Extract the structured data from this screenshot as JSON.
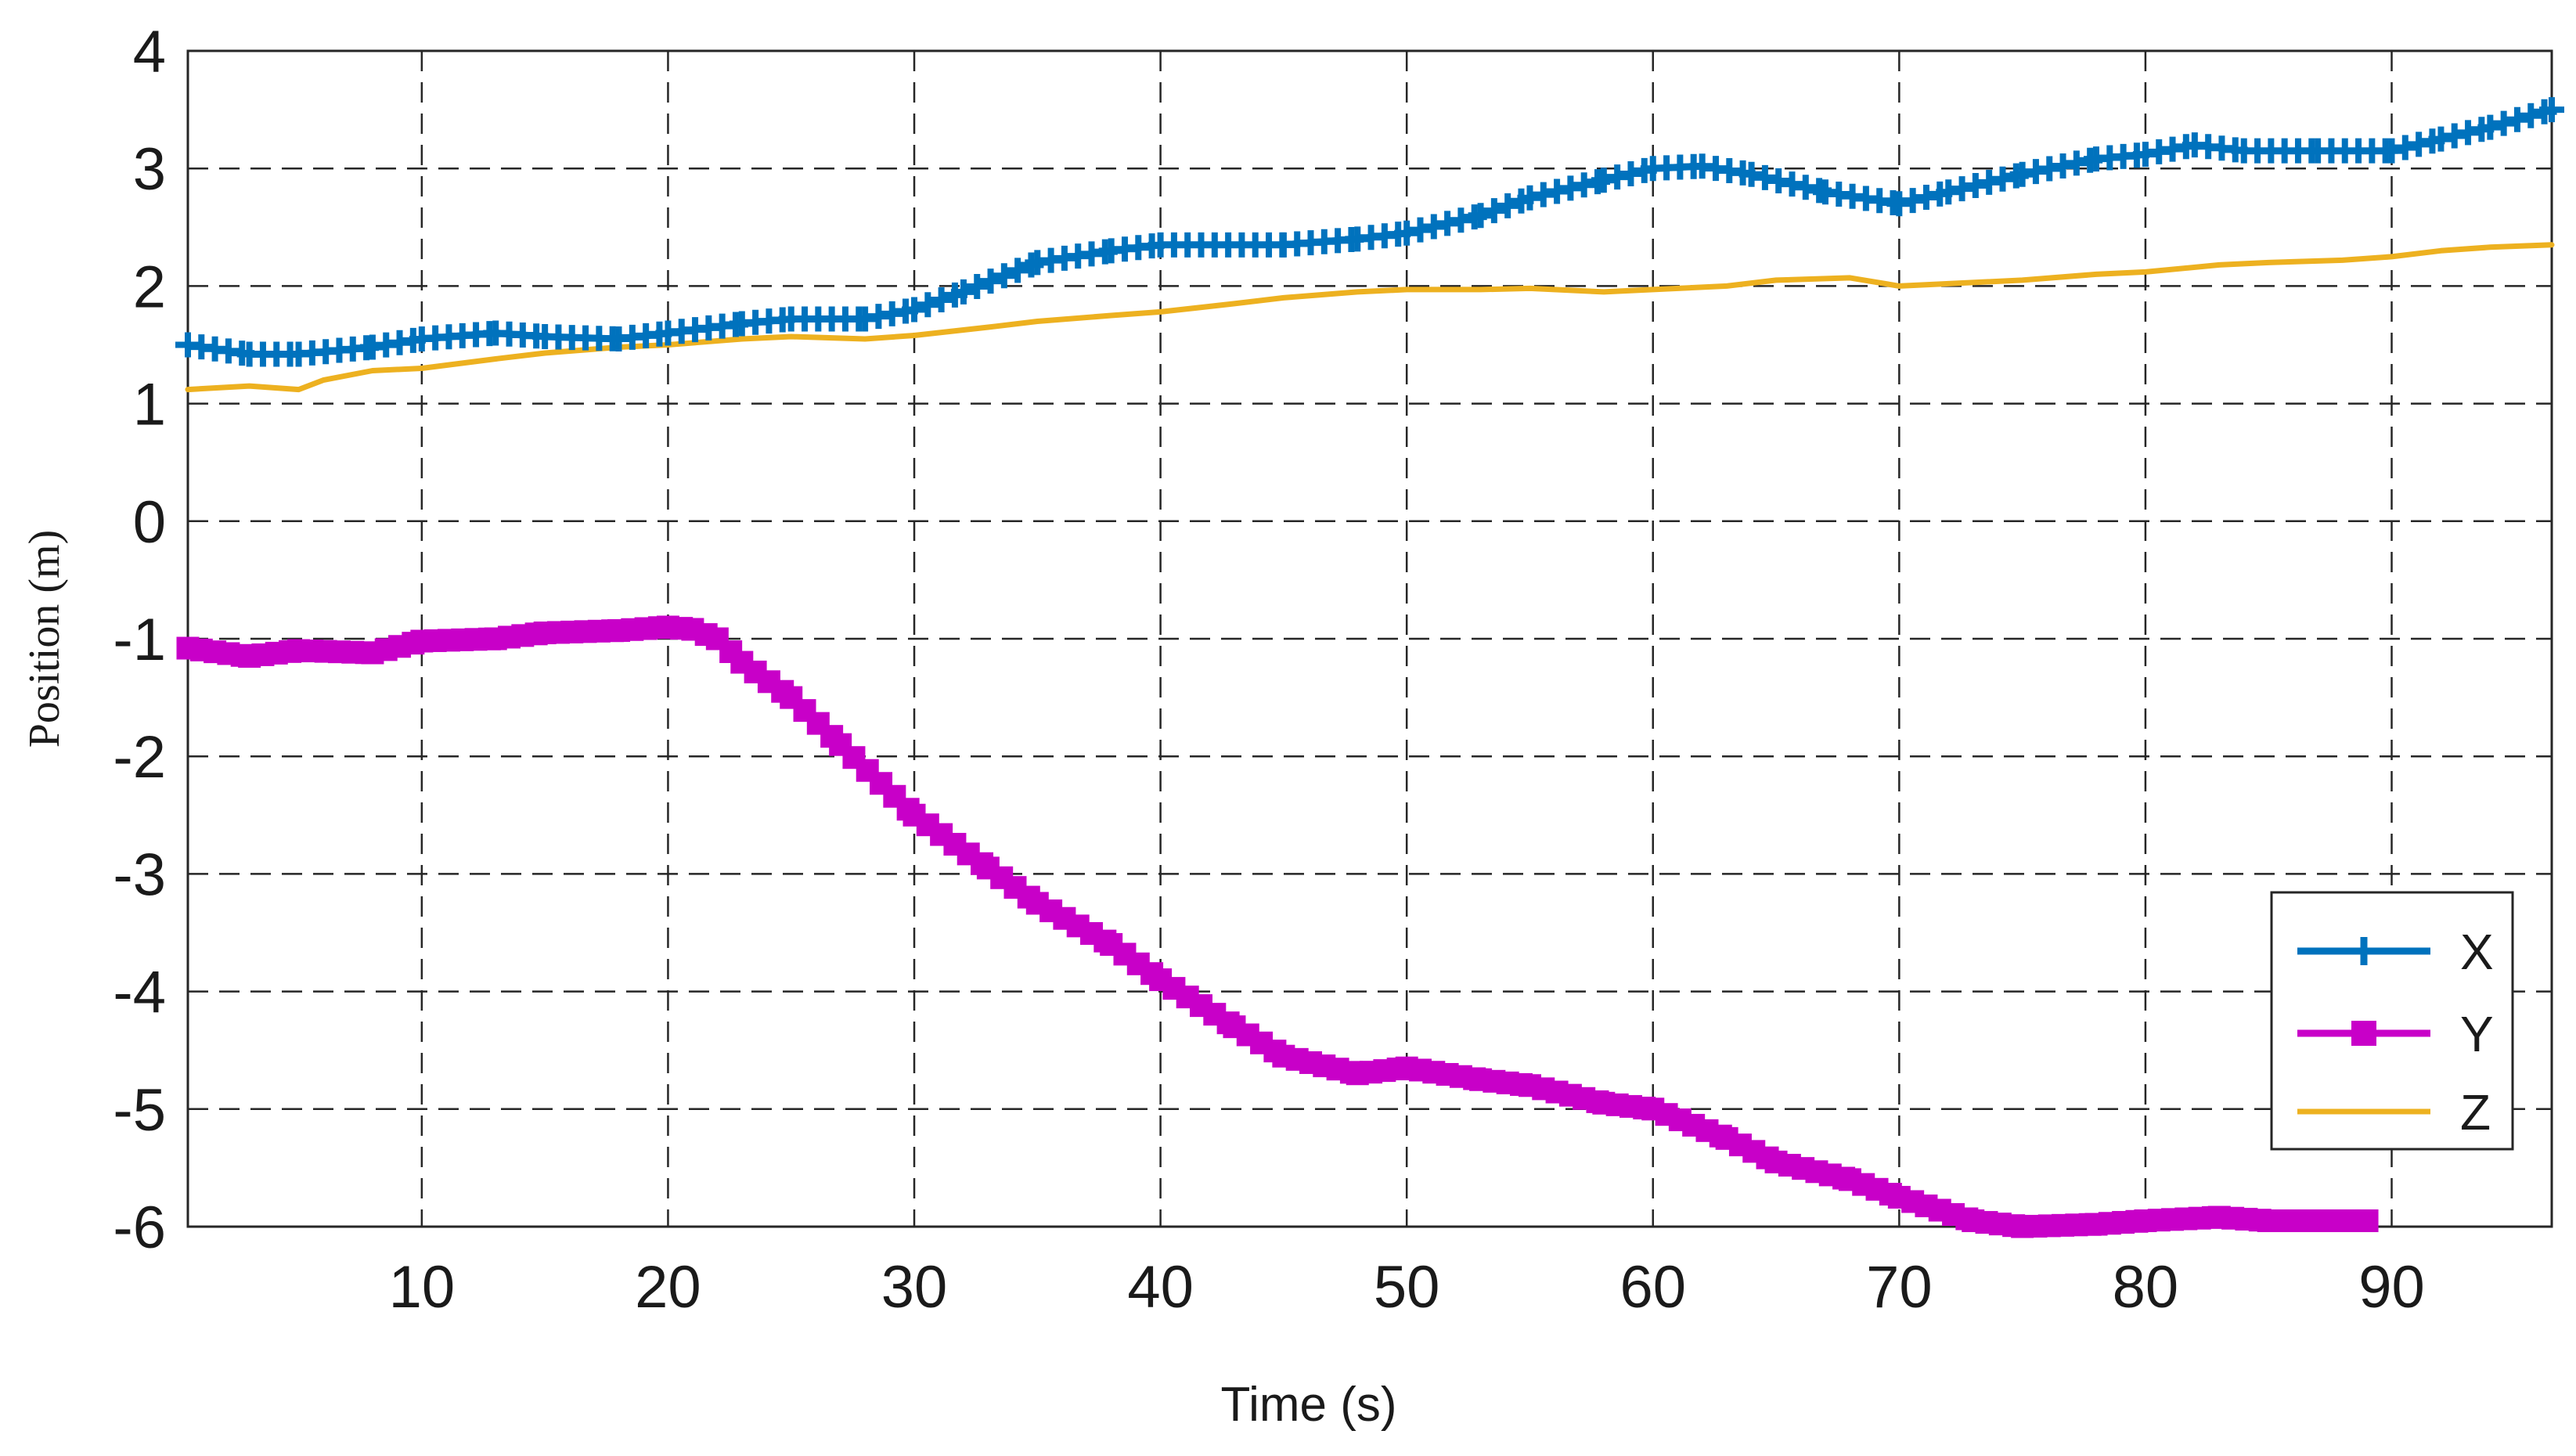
{
  "chart_data": {
    "type": "line",
    "title": "",
    "xlabel": "Time (s)",
    "ylabel": "Position (m)",
    "xlim": [
      0.5,
      96.5
    ],
    "ylim": [
      -6,
      4
    ],
    "xticks": [
      10,
      20,
      30,
      40,
      50,
      60,
      70,
      80,
      90
    ],
    "yticks": [
      4,
      3,
      2,
      1,
      0,
      -1,
      -2,
      -3,
      -4,
      -5,
      -6
    ],
    "grid": true,
    "legend_position": "bottom-right",
    "series": [
      {
        "name": "X",
        "color": "#0072BD",
        "marker": "plus",
        "points": [
          [
            0.5,
            1.5
          ],
          [
            3,
            1.42
          ],
          [
            5,
            1.42
          ],
          [
            8,
            1.48
          ],
          [
            10,
            1.55
          ],
          [
            13,
            1.6
          ],
          [
            15,
            1.57
          ],
          [
            18,
            1.55
          ],
          [
            20,
            1.6
          ],
          [
            23,
            1.68
          ],
          [
            25,
            1.72
          ],
          [
            28,
            1.72
          ],
          [
            30,
            1.8
          ],
          [
            32,
            1.95
          ],
          [
            35,
            2.2
          ],
          [
            38,
            2.3
          ],
          [
            40,
            2.35
          ],
          [
            45,
            2.35
          ],
          [
            48,
            2.4
          ],
          [
            50,
            2.45
          ],
          [
            53,
            2.6
          ],
          [
            55,
            2.75
          ],
          [
            58,
            2.9
          ],
          [
            60,
            3.0
          ],
          [
            62,
            3.02
          ],
          [
            64,
            2.95
          ],
          [
            67,
            2.8
          ],
          [
            70,
            2.7
          ],
          [
            72,
            2.8
          ],
          [
            75,
            2.95
          ],
          [
            78,
            3.08
          ],
          [
            80,
            3.12
          ],
          [
            82,
            3.2
          ],
          [
            84,
            3.15
          ],
          [
            87,
            3.15
          ],
          [
            90,
            3.15
          ],
          [
            92,
            3.25
          ],
          [
            94,
            3.35
          ],
          [
            96.5,
            3.5
          ]
        ]
      },
      {
        "name": "Y",
        "color": "#C800C8",
        "marker": "square",
        "points": [
          [
            0.5,
            -1.08
          ],
          [
            3,
            -1.15
          ],
          [
            5,
            -1.1
          ],
          [
            8,
            -1.12
          ],
          [
            10,
            -1.02
          ],
          [
            13,
            -1.0
          ],
          [
            15,
            -0.95
          ],
          [
            18,
            -0.93
          ],
          [
            20,
            -0.9
          ],
          [
            21,
            -0.92
          ],
          [
            22,
            -1.0
          ],
          [
            23,
            -1.2
          ],
          [
            25,
            -1.5
          ],
          [
            27,
            -1.9
          ],
          [
            30,
            -2.5
          ],
          [
            33,
            -2.95
          ],
          [
            35,
            -3.25
          ],
          [
            38,
            -3.6
          ],
          [
            40,
            -3.9
          ],
          [
            43,
            -4.3
          ],
          [
            45,
            -4.55
          ],
          [
            48,
            -4.7
          ],
          [
            50,
            -4.65
          ],
          [
            53,
            -4.75
          ],
          [
            55,
            -4.8
          ],
          [
            58,
            -4.95
          ],
          [
            60,
            -5.0
          ],
          [
            63,
            -5.25
          ],
          [
            65,
            -5.45
          ],
          [
            68,
            -5.6
          ],
          [
            70,
            -5.75
          ],
          [
            73,
            -5.95
          ],
          [
            75,
            -6.0
          ],
          [
            78,
            -5.98
          ],
          [
            80,
            -5.95
          ],
          [
            83,
            -5.92
          ],
          [
            85,
            -5.95
          ],
          [
            89,
            -5.95
          ]
        ]
      },
      {
        "name": "Z",
        "color": "#EDB120",
        "marker": "none",
        "points": [
          [
            0.5,
            1.12
          ],
          [
            3,
            1.15
          ],
          [
            5,
            1.12
          ],
          [
            6,
            1.2
          ],
          [
            8,
            1.28
          ],
          [
            10,
            1.3
          ],
          [
            13,
            1.38
          ],
          [
            15,
            1.43
          ],
          [
            18,
            1.48
          ],
          [
            20,
            1.5
          ],
          [
            23,
            1.55
          ],
          [
            25,
            1.57
          ],
          [
            28,
            1.55
          ],
          [
            30,
            1.58
          ],
          [
            33,
            1.65
          ],
          [
            35,
            1.7
          ],
          [
            38,
            1.75
          ],
          [
            40,
            1.78
          ],
          [
            43,
            1.85
          ],
          [
            45,
            1.9
          ],
          [
            48,
            1.95
          ],
          [
            50,
            1.97
          ],
          [
            53,
            1.97
          ],
          [
            55,
            1.98
          ],
          [
            58,
            1.95
          ],
          [
            60,
            1.97
          ],
          [
            63,
            2.0
          ],
          [
            65,
            2.05
          ],
          [
            68,
            2.07
          ],
          [
            70,
            2.0
          ],
          [
            72,
            2.02
          ],
          [
            75,
            2.05
          ],
          [
            78,
            2.1
          ],
          [
            80,
            2.12
          ],
          [
            83,
            2.18
          ],
          [
            85,
            2.2
          ],
          [
            88,
            2.22
          ],
          [
            90,
            2.25
          ],
          [
            92,
            2.3
          ],
          [
            94,
            2.33
          ],
          [
            96.5,
            2.35
          ]
        ]
      }
    ]
  }
}
